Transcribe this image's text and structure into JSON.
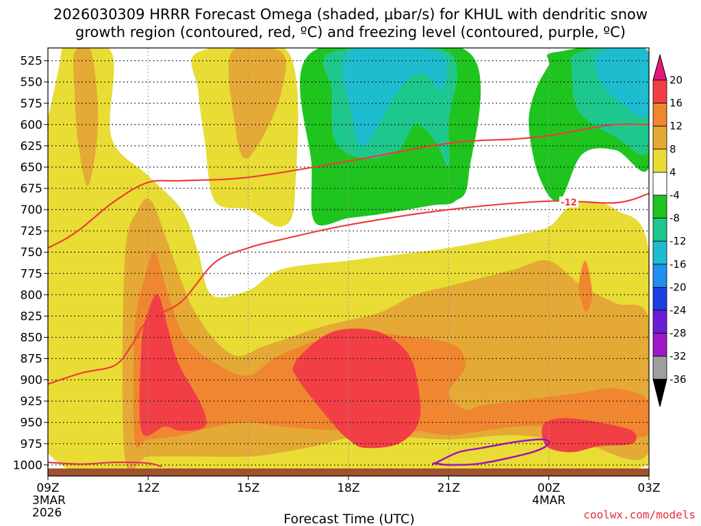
{
  "chart_data": {
    "type": "heatmap",
    "title_line1": "2026030309 HRRR Forecast Omega (shaded, μbar/s) for KHUL with dendritic snow",
    "title_line2": "growth region (contoured, red, ºC) and freezing level (contoured, purple, ºC)",
    "xlabel": "Forecast Time (UTC)",
    "credit": "coolwx.com/models",
    "x_range_hours": [
      0,
      18
    ],
    "y_levels_hpa": [
      525,
      550,
      575,
      600,
      625,
      650,
      675,
      700,
      725,
      750,
      775,
      800,
      825,
      850,
      875,
      900,
      925,
      950,
      975,
      1000
    ],
    "y_range_hpa": [
      510,
      1013
    ],
    "x_ticks": [
      {
        "hour": 0,
        "label": "09Z",
        "sub1": "3MAR",
        "sub2": "2026"
      },
      {
        "hour": 3,
        "label": "12Z",
        "sub1": "",
        "sub2": ""
      },
      {
        "hour": 6,
        "label": "15Z",
        "sub1": "",
        "sub2": ""
      },
      {
        "hour": 9,
        "label": "18Z",
        "sub1": "",
        "sub2": ""
      },
      {
        "hour": 12,
        "label": "21Z",
        "sub1": "",
        "sub2": ""
      },
      {
        "hour": 15,
        "label": "00Z",
        "sub1": "4MAR",
        "sub2": ""
      },
      {
        "hour": 18,
        "label": "03Z",
        "sub1": "",
        "sub2": ""
      }
    ],
    "colorbar": {
      "labels": [
        "20",
        "16",
        "12",
        "8",
        "4",
        "-4",
        "-8",
        "-12",
        "-16",
        "-20",
        "-24",
        "-28",
        "-32",
        "-36"
      ],
      "colors": [
        "#f23f45",
        "#f08630",
        "#e5a935",
        "#e8dc35",
        "#ffffff",
        "#1fc41f",
        "#1ec88c",
        "#1dbdcf",
        "#1e90f0",
        "#1e3fe0",
        "#6a1fd6",
        "#a019c8",
        "#9e9e9e"
      ],
      "top_color": "#e6177a",
      "bottom_color": "#000000"
    },
    "contour_label": "-12",
    "contours_minus12": [
      [
        [
          0,
          745
        ],
        [
          0.5,
          735
        ],
        [
          1,
          722
        ],
        [
          2,
          690
        ],
        [
          3,
          668
        ],
        [
          4,
          666
        ],
        [
          6,
          662
        ],
        [
          9,
          643
        ],
        [
          12,
          622
        ],
        [
          14,
          617
        ],
        [
          15,
          613
        ],
        [
          16,
          606
        ],
        [
          17,
          600
        ],
        [
          18,
          600
        ]
      ],
      [
        [
          0,
          905
        ],
        [
          1,
          892
        ],
        [
          2,
          883
        ],
        [
          2.5,
          860
        ],
        [
          3,
          830
        ],
        [
          4,
          808
        ],
        [
          5,
          762
        ],
        [
          6,
          745
        ],
        [
          7,
          735
        ],
        [
          9,
          718
        ],
        [
          12,
          700
        ],
        [
          15,
          690
        ],
        [
          17,
          692
        ],
        [
          18,
          681
        ]
      ]
    ],
    "contour_freezing": [
      [
        [
          11.6,
          998
        ],
        [
          12.3,
          985
        ],
        [
          13,
          980
        ],
        [
          14,
          973
        ],
        [
          14.8,
          970
        ],
        [
          15,
          975
        ],
        [
          14.5,
          985
        ],
        [
          13,
          998
        ],
        [
          12,
          1000
        ],
        [
          11.6,
          998
        ]
      ]
    ],
    "contour_lower_dgz": [
      [
        [
          0,
          997
        ],
        [
          1,
          999
        ],
        [
          2,
          997
        ],
        [
          3,
          998
        ],
        [
          3.4,
          1002
        ]
      ]
    ],
    "regions": [
      {
        "level": 4,
        "color": "#e8dc35",
        "pts": [
          [
            0.4,
            1000
          ],
          [
            0.4,
            515
          ],
          [
            1.9,
            515
          ],
          [
            1.9,
            615
          ],
          [
            3,
            660
          ],
          [
            4,
            700
          ],
          [
            4.5,
            750
          ],
          [
            4.9,
            800
          ],
          [
            6,
            795
          ],
          [
            7,
            770
          ],
          [
            9,
            760
          ],
          [
            10,
            755
          ],
          [
            12,
            745
          ],
          [
            14,
            730
          ],
          [
            15,
            720
          ],
          [
            15.5,
            700
          ],
          [
            16,
            690
          ],
          [
            17,
            700
          ],
          [
            18,
            750
          ],
          [
            18,
            1000
          ]
        ]
      },
      {
        "level": 4,
        "color": "#e8dc35",
        "pts": [
          [
            4.5,
            515
          ],
          [
            7.2,
            515
          ],
          [
            7.4,
            680
          ],
          [
            7,
            720
          ],
          [
            6,
            700
          ],
          [
            5,
            690
          ],
          [
            4.7,
            620
          ],
          [
            4.5,
            560
          ]
        ]
      },
      {
        "level": 8,
        "color": "#e5a935",
        "pts": [
          [
            0.8,
            515
          ],
          [
            1.3,
            515
          ],
          [
            1.5,
            600
          ],
          [
            1.2,
            672
          ],
          [
            0.9,
            620
          ],
          [
            0.8,
            560
          ]
        ]
      },
      {
        "level": 8,
        "color": "#e5a935",
        "pts": [
          [
            5.5,
            515
          ],
          [
            7.0,
            515
          ],
          [
            7.0,
            560
          ],
          [
            6.5,
            610
          ],
          [
            5.9,
            640
          ],
          [
            5.6,
            600
          ]
        ]
      },
      {
        "level": 8,
        "color": "#e5a935",
        "pts": [
          [
            2.3,
            990
          ],
          [
            2.3,
            760
          ],
          [
            2.7,
            700
          ],
          [
            3.1,
            690
          ],
          [
            3.6,
            740
          ],
          [
            4.4,
            820
          ],
          [
            5.5,
            870
          ],
          [
            6.5,
            860
          ],
          [
            8,
            840
          ],
          [
            9,
            830
          ],
          [
            10,
            820
          ],
          [
            11,
            800
          ],
          [
            12,
            790
          ],
          [
            13,
            780
          ],
          [
            14,
            770
          ],
          [
            15,
            760
          ],
          [
            16,
            790
          ],
          [
            17,
            810
          ],
          [
            18,
            830
          ],
          [
            18,
            985
          ],
          [
            16,
            975
          ],
          [
            14,
            965
          ],
          [
            12,
            970
          ],
          [
            10,
            965
          ],
          [
            9,
            968
          ],
          [
            8,
            978
          ],
          [
            7,
            985
          ],
          [
            6,
            990
          ],
          [
            4,
            990
          ],
          [
            3,
            990
          ]
        ]
      },
      {
        "level": 12,
        "color": "#f08630",
        "pts": [
          [
            2.6,
            970
          ],
          [
            2.6,
            840
          ],
          [
            2.9,
            780
          ],
          [
            3.2,
            750
          ],
          [
            3.6,
            800
          ],
          [
            4.1,
            850
          ],
          [
            5,
            880
          ],
          [
            6,
            895
          ],
          [
            7,
            870
          ],
          [
            9,
            845
          ],
          [
            11,
            850
          ],
          [
            12.2,
            860
          ],
          [
            12.5,
            885
          ],
          [
            12,
            915
          ],
          [
            12.5,
            935
          ],
          [
            13,
            930
          ],
          [
            14,
            925
          ],
          [
            15,
            920
          ],
          [
            16,
            915
          ],
          [
            17,
            910
          ],
          [
            18,
            925
          ],
          [
            18,
            965
          ],
          [
            16,
            960
          ],
          [
            15,
            955
          ],
          [
            14,
            955
          ],
          [
            13,
            960
          ],
          [
            12,
            965
          ],
          [
            11,
            960
          ],
          [
            10,
            965
          ],
          [
            9,
            960
          ],
          [
            8,
            958
          ],
          [
            7,
            955
          ],
          [
            6,
            950
          ],
          [
            5,
            955
          ],
          [
            4,
            965
          ],
          [
            3,
            970
          ]
        ]
      },
      {
        "level": 12,
        "color": "#f08630",
        "pts": [
          [
            15.9,
            790
          ],
          [
            16.1,
            760
          ],
          [
            16.3,
            800
          ],
          [
            16.1,
            820
          ]
        ]
      },
      {
        "level": 16,
        "color": "#f23f45",
        "pts": [
          [
            2.8,
            960
          ],
          [
            2.8,
            860
          ],
          [
            3,
            820
          ],
          [
            3.3,
            800
          ],
          [
            3.6,
            840
          ],
          [
            3.9,
            880
          ],
          [
            4.6,
            930
          ],
          [
            4.7,
            955
          ],
          [
            4,
            960
          ],
          [
            3.5,
            955
          ]
        ]
      },
      {
        "level": 16,
        "color": "#f23f45",
        "pts": [
          [
            7.4,
            880
          ],
          [
            8.2,
            850
          ],
          [
            9,
            840
          ],
          [
            10,
            845
          ],
          [
            10.8,
            870
          ],
          [
            11.1,
            910
          ],
          [
            11.1,
            950
          ],
          [
            10.5,
            975
          ],
          [
            9.5,
            980
          ],
          [
            9,
            970
          ],
          [
            8.5,
            950
          ],
          [
            7.5,
            900
          ]
        ]
      },
      {
        "level": 16,
        "color": "#f23f45",
        "pts": [
          [
            14.8,
            965
          ],
          [
            14.9,
            950
          ],
          [
            15.5,
            945
          ],
          [
            16.5,
            950
          ],
          [
            17.5,
            960
          ],
          [
            17.5,
            975
          ],
          [
            16.5,
            978
          ],
          [
            15.7,
            985
          ],
          [
            15,
            980
          ]
        ]
      },
      {
        "level": -8,
        "color": "#1fc41f",
        "pts": [
          [
            7.9,
            515
          ],
          [
            12.6,
            515
          ],
          [
            12.6,
            660
          ],
          [
            12.2,
            690
          ],
          [
            11.5,
            695
          ],
          [
            10,
            705
          ],
          [
            9,
            710
          ],
          [
            8,
            715
          ],
          [
            7.9,
            650
          ]
        ]
      },
      {
        "level": -8,
        "color": "#1fc41f",
        "pts": [
          [
            15.2,
            515
          ],
          [
            18,
            515
          ],
          [
            18,
            650
          ],
          [
            17,
            630
          ],
          [
            16,
            635
          ],
          [
            15.3,
            690
          ],
          [
            14.7,
            660
          ],
          [
            14.4,
            600
          ],
          [
            14.6,
            560
          ],
          [
            15.0,
            530
          ]
        ]
      },
      {
        "level": -12,
        "color": "#1ec88c",
        "pts": [
          [
            8.5,
            515
          ],
          [
            12.0,
            515
          ],
          [
            12.0,
            600
          ],
          [
            12.0,
            650
          ],
          [
            11.6,
            620
          ],
          [
            11,
            600
          ],
          [
            10.5,
            630
          ],
          [
            9.5,
            640
          ],
          [
            8.6,
            620
          ],
          [
            8.5,
            560
          ]
        ]
      },
      {
        "level": -12,
        "color": "#1ec88c",
        "pts": [
          [
            15.9,
            515
          ],
          [
            18,
            515
          ],
          [
            18,
            630
          ],
          [
            17,
            615
          ],
          [
            15.9,
            585
          ],
          [
            15.7,
            540
          ]
        ]
      },
      {
        "level": -16,
        "color": "#1dbdcf",
        "pts": [
          [
            9.0,
            515
          ],
          [
            11.7,
            515
          ],
          [
            11.8,
            560
          ],
          [
            11.2,
            540
          ],
          [
            10.5,
            560
          ],
          [
            9.5,
            625
          ],
          [
            9.1,
            590
          ]
        ]
      },
      {
        "level": -16,
        "color": "#1dbdcf",
        "pts": [
          [
            16.5,
            515
          ],
          [
            18,
            515
          ],
          [
            18,
            590
          ],
          [
            17,
            570
          ],
          [
            16.5,
            545
          ]
        ]
      }
    ]
  }
}
